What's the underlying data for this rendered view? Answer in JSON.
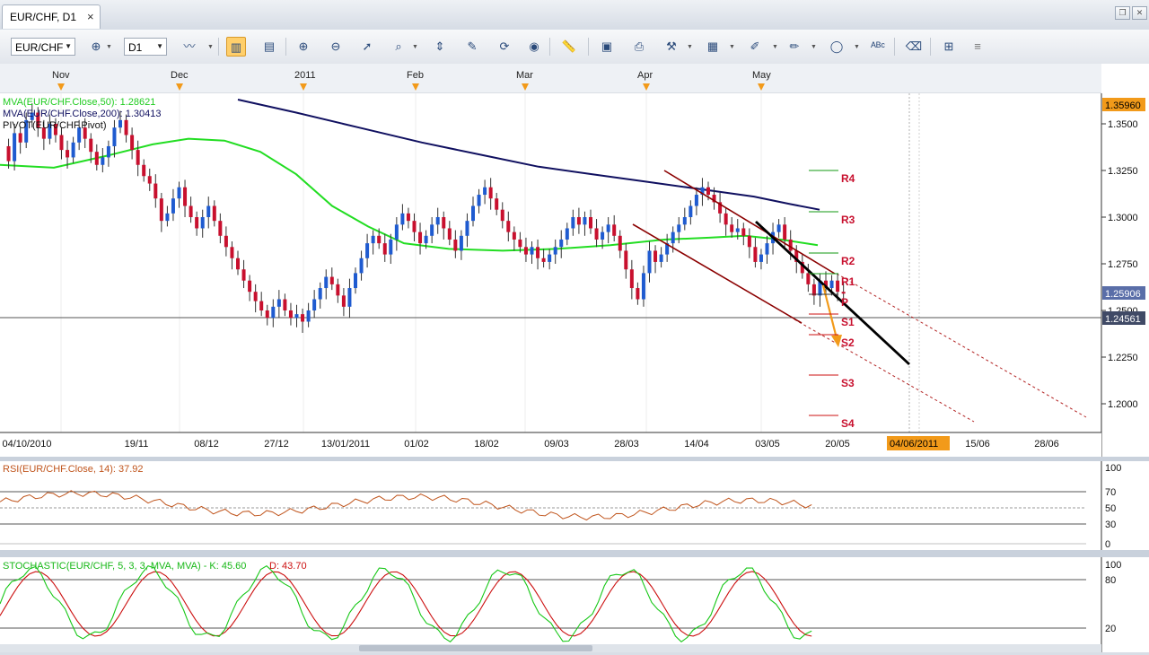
{
  "window": {
    "tab_title": "EUR/CHF, D1",
    "tab_close": "×",
    "restore_glyph": "❐",
    "close_glyph": "✕"
  },
  "toolbar": {
    "symbol": "EUR/CHF",
    "timeframe": "D1",
    "icons": [
      "bars-icon",
      "chart-type-icon",
      "candles-icon",
      "text-icon",
      "zoom-in-icon",
      "zoom-out-icon",
      "cursor-icon",
      "magnifier-icon",
      "fit-icon",
      "edit-icon",
      "refresh-icon",
      "globe-icon",
      "ruler-icon",
      "image-icon",
      "print-icon",
      "tools-icon",
      "layout-icon",
      "pencil-icon",
      "brush-icon",
      "ellipse-icon",
      "abc-icon",
      "eraser-icon",
      "tree-icon"
    ]
  },
  "chart": {
    "month_labels": [
      "Nov",
      "Dec",
      "2011",
      "Feb",
      "Mar",
      "Apr",
      "May"
    ],
    "price_ticks": [
      "1.3500",
      "1.3250",
      "1.3000",
      "1.2750",
      "1.2500",
      "1.2250",
      "1.2000"
    ],
    "price_flags": {
      "high": "1.35960",
      "current": "1.25906",
      "line": "1.24561"
    },
    "indicator_labels": {
      "ma50": "MVA(EUR/CHF.Close,50): 1.28621",
      "ma200": "MVA(EUR/CHF.Close,200): 1.30413",
      "pivot": "PIVOT(EUR/CHF.Pivot)"
    },
    "pivot_labels": [
      "R4",
      "R3",
      "R2",
      "R1",
      "P",
      "S1",
      "S2",
      "S3",
      "S4"
    ],
    "date_labels": [
      "04/10/2010",
      "19/11",
      "08/12",
      "27/12",
      "13/01/2011",
      "01/02",
      "18/02",
      "09/03",
      "28/03",
      "14/04",
      "03/05",
      "20/05",
      "15/06",
      "28/06"
    ],
    "date_highlight": "04/06/2011",
    "colors": {
      "up": "#1f5bd0",
      "down": "#c8102e",
      "ma50": "#22dd22",
      "ma200": "#101060",
      "channel": "#8b0000",
      "rsi": "#c0551d",
      "stoch_k": "#18c818",
      "stoch_d": "#cc1010",
      "highlight": "#f29a1a"
    }
  },
  "rsi": {
    "label": "RSI(EUR/CHF.Close, 14): 37.92",
    "ticks": [
      "100",
      "70",
      "50",
      "30",
      "0"
    ]
  },
  "stochastic": {
    "label_a": "STOCHASTIC(EUR/CHF, 5, 3, 3, MVA, MVA) -   K: 45.60",
    "label_b": "D: 43.70",
    "ticks": [
      "100",
      "80",
      "20"
    ]
  }
}
